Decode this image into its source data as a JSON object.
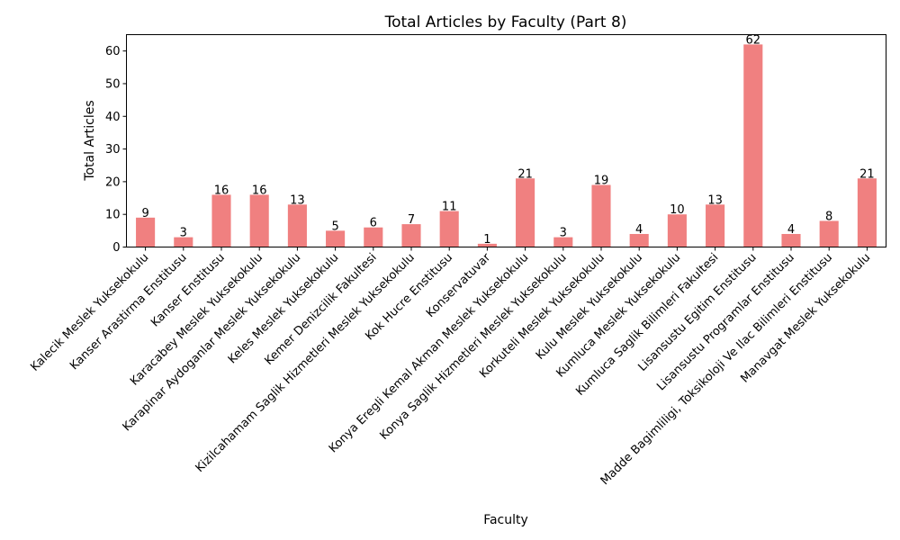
{
  "chart_data": {
    "type": "bar",
    "title": "Total Articles by Faculty (Part 8)",
    "xlabel": "Faculty",
    "ylabel": "Total Articles",
    "ylim": [
      0,
      65
    ],
    "yticks": [
      0,
      10,
      20,
      30,
      40,
      50,
      60
    ],
    "grid": false,
    "bar_color": "#f08080",
    "categories": [
      "Kalecik Meslek Yuksekokulu",
      "Kanser Arastirma Enstitusu",
      "Kanser Enstitusu",
      "Karacabey Meslek Yuksekokulu",
      "Karapinar Aydoganlar Meslek Yuksekokulu",
      "Keles Meslek Yuksekokulu",
      "Kemer Denizcilik Fakultesi",
      "Kizilcahamam Saglik Hizmetleri Meslek Yuksekokulu",
      "Kok Hucre Enstitusu",
      "Konservatuvar",
      "Konya Eregli Kemal Akman Meslek Yuksekokulu",
      "Konya Saglik Hizmetleri Meslek Yuksekokulu",
      "Korkuteli Meslek Yuksekokulu",
      "Kulu Meslek Yuksekokulu",
      "Kumluca Meslek Yuksekokulu",
      "Kumluca Saglik Bilimleri Fakultesi",
      "Lisansustu Egitim Enstitusu",
      "Lisansustu Programlar Enstitusu",
      "Madde Bagimliligi, Toksikoloji Ve Ilac Bilimleri Enstitusu",
      "Manavgat Meslek Yuksekokulu"
    ],
    "values": [
      9,
      3,
      16,
      16,
      13,
      5,
      6,
      7,
      11,
      1,
      21,
      3,
      19,
      4,
      10,
      13,
      62,
      4,
      8,
      21
    ]
  }
}
